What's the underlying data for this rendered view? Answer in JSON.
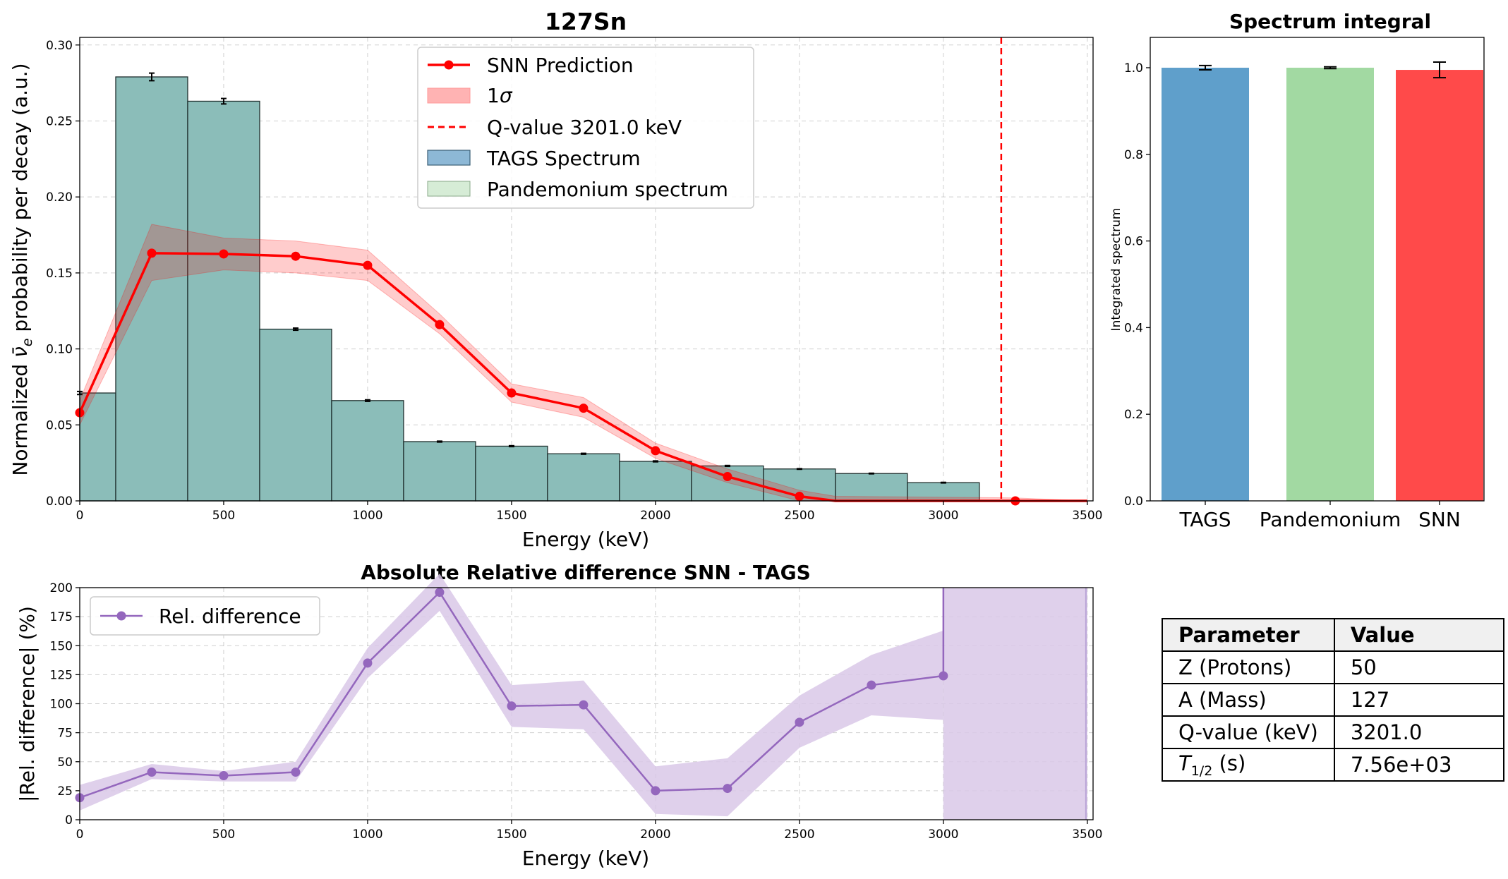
{
  "main_chart": {
    "title": "127Sn",
    "xlabel": "Energy (keV)",
    "ylabel_prefix": "Normalized ",
    "ylabel_nu": "ν̄",
    "ylabel_sub": "e",
    "ylabel_suffix": " probability per decay (a.u.)",
    "x_ticks": [
      "0",
      "500",
      "1000",
      "1500",
      "2000",
      "2500",
      "3000",
      "3500"
    ],
    "y_ticks": [
      "0.00",
      "0.05",
      "0.10",
      "0.15",
      "0.20",
      "0.25",
      "0.30"
    ],
    "legend": {
      "snn": "SNN Prediction",
      "sigma_prefix": "1",
      "sigma_symbol": "σ",
      "qvalue": "Q-value 3201.0 keV",
      "tags": "TAGS Spectrum",
      "pandemonium": "Pandemonium spectrum"
    }
  },
  "bar_chart": {
    "title": "Spectrum integral",
    "ylabel": "Integrated spectrum",
    "y_ticks": [
      "0.0",
      "0.2",
      "0.4",
      "0.6",
      "0.8",
      "1.0"
    ],
    "categories": [
      "TAGS",
      "Pandemonium",
      "SNN"
    ]
  },
  "diff_chart": {
    "title": "Absolute Relative difference SNN - TAGS",
    "xlabel": "Energy (keV)",
    "ylabel": "|Rel. difference| (%)",
    "x_ticks": [
      "0",
      "500",
      "1000",
      "1500",
      "2000",
      "2500",
      "3000",
      "3500"
    ],
    "y_ticks": [
      "0",
      "25",
      "50",
      "75",
      "100",
      "125",
      "150",
      "175",
      "200"
    ],
    "legend": "Rel. difference"
  },
  "table": {
    "header": [
      "Parameter",
      "Value"
    ],
    "rows": [
      {
        "param": "Z (Protons)",
        "value": "50"
      },
      {
        "param": "A (Mass)",
        "value": "127"
      },
      {
        "param": "Q-value (keV)",
        "value": "3201.0"
      },
      {
        "param_T": "T",
        "param_sub": "1/2",
        "param_unit": " (s)",
        "value": "7.56e+03"
      }
    ]
  },
  "colors": {
    "tags_hist": "#8bbdb9",
    "snn": "#ff0000",
    "snn_band": "#ffb3b3",
    "qvalue": "#ff0000",
    "bar_tags": "#5f9fcb",
    "bar_pandemonium": "#a2d9a2",
    "bar_snn": "#ff4a4a",
    "diff": "#9467bd",
    "diff_band": "#d9c8e8"
  },
  "chart_data": [
    {
      "type": "bar",
      "name": "127Sn",
      "xlim": [
        0,
        3520
      ],
      "ylim": [
        0,
        0.305
      ],
      "grid": true,
      "legend_position": "top-center",
      "tags_spectrum": {
        "bin_width": 250,
        "bin_centers": [
          0,
          250,
          500,
          750,
          1000,
          1250,
          1500,
          1750,
          2000,
          2250,
          2500,
          2750,
          3000
        ],
        "values": [
          0.071,
          0.279,
          0.263,
          0.113,
          0.066,
          0.039,
          0.036,
          0.031,
          0.026,
          0.023,
          0.021,
          0.018,
          0.012
        ],
        "errors": [
          0.001,
          0.0025,
          0.0018,
          0.0007,
          0.0005,
          0.0003,
          0.0003,
          0.0003,
          0.0003,
          0.0003,
          0.0002,
          0.0002,
          0.0002
        ]
      },
      "pandemonium_spectrum": {
        "bin_centers": [
          0,
          250,
          500,
          750,
          1000,
          1250,
          1500,
          1750,
          2000,
          2250,
          2500,
          2750,
          3000
        ],
        "values": [
          0.071,
          0.279,
          0.263,
          0.113,
          0.066,
          0.039,
          0.036,
          0.031,
          0.026,
          0.023,
          0.021,
          0.018,
          0.012
        ]
      },
      "snn_prediction": {
        "x": [
          0,
          250,
          500,
          750,
          1000,
          1250,
          1500,
          1750,
          2000,
          2250,
          2500,
          2625,
          3250,
          3500
        ],
        "y": [
          0.058,
          0.163,
          0.1625,
          0.161,
          0.155,
          0.116,
          0.071,
          0.061,
          0.033,
          0.016,
          0.003,
          0.0,
          0.0,
          0.0
        ],
        "band_low": [
          0.05,
          0.145,
          0.152,
          0.15,
          0.145,
          0.11,
          0.065,
          0.055,
          0.028,
          0.012,
          0.0,
          0.0,
          0.0,
          0.0
        ],
        "band_high": [
          0.066,
          0.182,
          0.173,
          0.171,
          0.165,
          0.123,
          0.077,
          0.068,
          0.038,
          0.021,
          0.007,
          0.003,
          0.002,
          0.0
        ]
      },
      "qvalue_keV": 3201.0
    },
    {
      "type": "bar",
      "name": "Spectrum integral",
      "categories": [
        "TAGS",
        "Pandemonium",
        "SNN"
      ],
      "values": [
        1.0,
        1.0,
        0.995
      ],
      "errors": [
        0.005,
        0.002,
        0.018
      ],
      "ylim": [
        0,
        1.07
      ]
    },
    {
      "type": "line",
      "name": "Absolute Relative difference SNN - TAGS",
      "xlim": [
        0,
        3520
      ],
      "ylim": [
        0,
        200
      ],
      "legend_position": "top-left",
      "x": [
        0,
        250,
        500,
        750,
        1000,
        1250,
        1500,
        1750,
        2000,
        2250,
        2500,
        2750,
        3000
      ],
      "y": [
        19,
        41,
        38,
        41,
        135,
        196,
        98,
        99,
        25,
        27,
        84,
        116,
        124
      ],
      "band_low": [
        8,
        35,
        33,
        33,
        122,
        180,
        80,
        78,
        5,
        3,
        62,
        90,
        86
      ],
      "band_high": [
        30,
        48,
        42,
        50,
        148,
        212,
        116,
        120,
        46,
        53,
        107,
        142,
        163
      ],
      "tail_band_x": [
        3000,
        3500
      ],
      "tail_band_range": [
        0,
        200
      ]
    }
  ]
}
